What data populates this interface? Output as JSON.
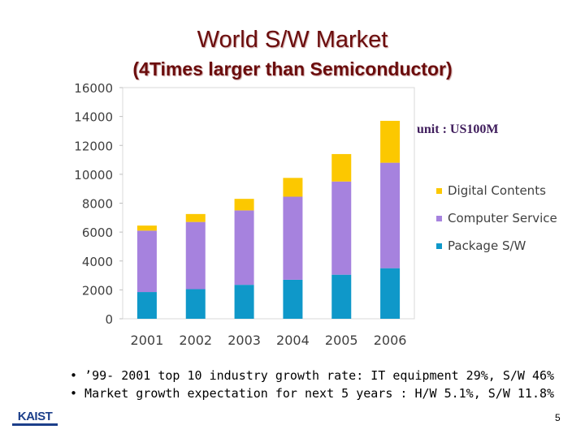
{
  "slide": {
    "title": "World S/W Market",
    "subtitle": "(4Times larger than Semiconductor)",
    "unit": "unit : US100M",
    "bullets": [
      "• ’99- 2001 top 10 industry growth rate: IT equipment 29%, S/W 46%",
      "• Market growth expectation for next 5 years : H/W 5.1%, S/W 11.8%"
    ],
    "logo_text": "KAIST",
    "page_number": "5"
  },
  "chart_data": {
    "type": "bar",
    "stacked": true,
    "categories": [
      "2001",
      "2002",
      "2003",
      "2004",
      "2005",
      "2006"
    ],
    "series": [
      {
        "name": "Package S/W",
        "color": "#0f98c9",
        "values": [
          1850,
          2050,
          2350,
          2700,
          3050,
          3500
        ]
      },
      {
        "name": "Computer Service",
        "color": "#a682de",
        "values": [
          4250,
          4650,
          5150,
          5750,
          6450,
          7300
        ]
      },
      {
        "name": "Digital Contents",
        "color": "#fcc800",
        "values": [
          350,
          550,
          800,
          1300,
          1900,
          2900
        ]
      }
    ],
    "legend_order": [
      "Digital Contents",
      "Computer Service",
      "Package S/W"
    ],
    "ylim": [
      0,
      16000
    ],
    "yticks": [
      "0",
      "2000",
      "4000",
      "6000",
      "8000",
      "10000",
      "12000",
      "14000",
      "16000"
    ],
    "grid": false,
    "legend_position": "right"
  }
}
